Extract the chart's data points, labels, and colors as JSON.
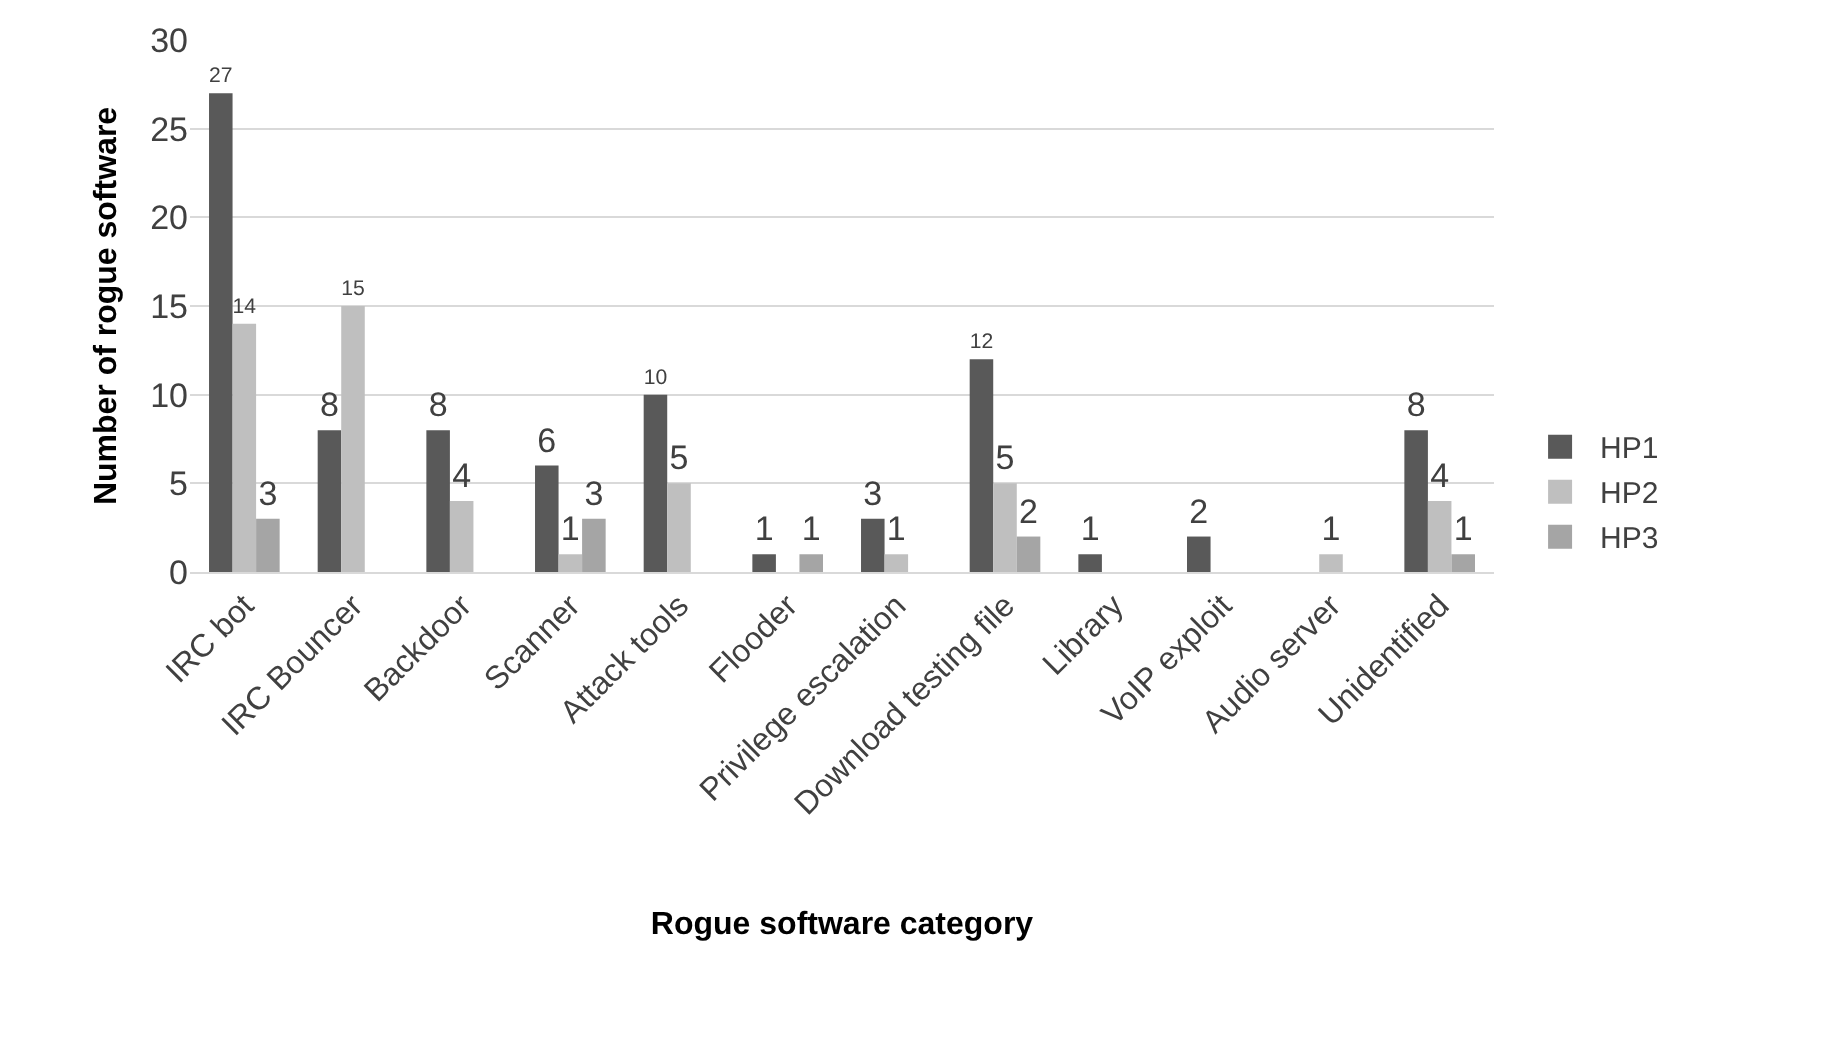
{
  "chart_data": {
    "type": "bar",
    "xlabel": "Rogue software category",
    "ylabel": "Number of rogue software",
    "categories": [
      "IRC bot",
      "IRC Bouncer",
      "Backdoor",
      "Scanner",
      "Attack tools",
      "Flooder",
      "Privilege escalation",
      "Download testing file",
      "Library",
      "VoIP exploit",
      "Audio server",
      "Unidentified"
    ],
    "series": [
      {
        "name": "HP1",
        "color": "#595959",
        "values": [
          27,
          8,
          8,
          6,
          10,
          1,
          3,
          12,
          1,
          2,
          null,
          8
        ]
      },
      {
        "name": "HP2",
        "color": "#bfbfbf",
        "values": [
          14,
          15,
          4,
          1,
          5,
          null,
          1,
          5,
          null,
          null,
          1,
          4
        ]
      },
      {
        "name": "HP3",
        "color": "#a5a5a5",
        "values": [
          3,
          null,
          null,
          3,
          null,
          1,
          null,
          2,
          null,
          null,
          null,
          1
        ]
      }
    ],
    "ylim": [
      0,
      30
    ],
    "yticks": [
      0,
      5,
      10,
      15,
      20,
      25,
      30
    ],
    "grid": "y",
    "legend": "right",
    "data_labels": true
  }
}
